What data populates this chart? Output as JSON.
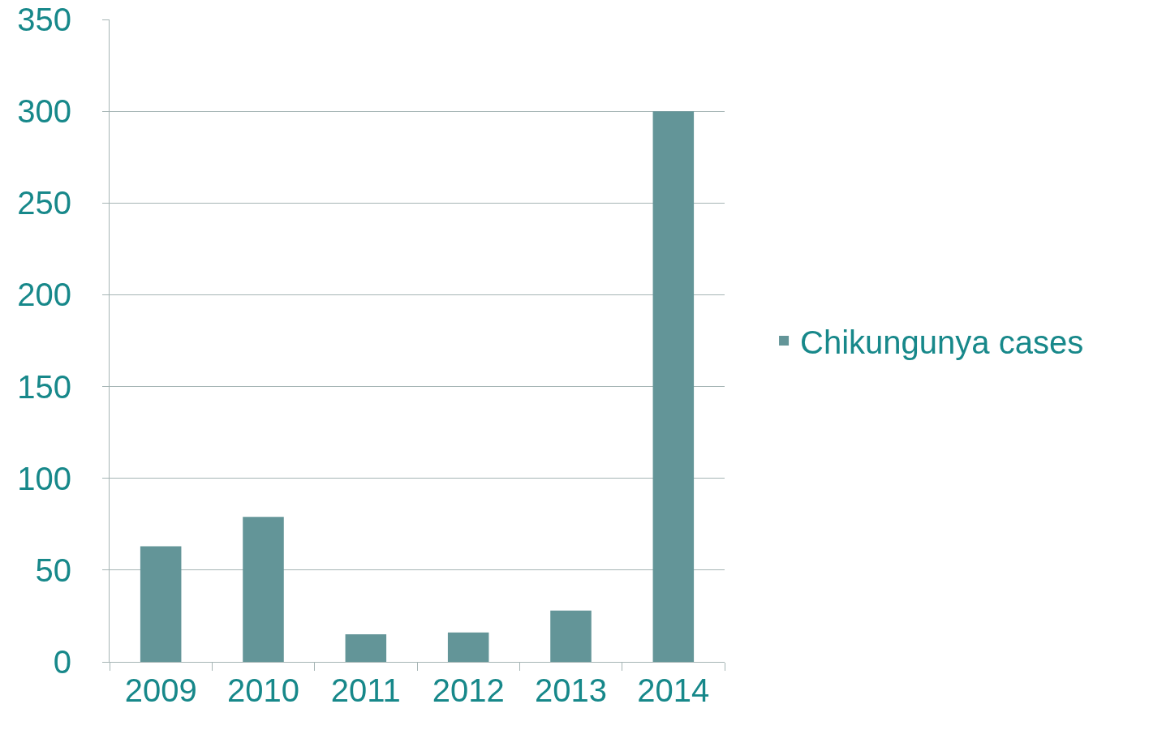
{
  "chart_data": {
    "type": "bar",
    "categories": [
      "2009",
      "2010",
      "2011",
      "2012",
      "2013",
      "2014"
    ],
    "series": [
      {
        "name": "Chikungunya cases",
        "color": "#639598",
        "values": [
          63,
          79,
          15,
          16,
          28,
          300
        ]
      }
    ],
    "ylim": [
      0,
      350
    ],
    "yticks": [
      0,
      50,
      100,
      150,
      200,
      250,
      300,
      350
    ],
    "grid": "y",
    "legend": "right"
  }
}
